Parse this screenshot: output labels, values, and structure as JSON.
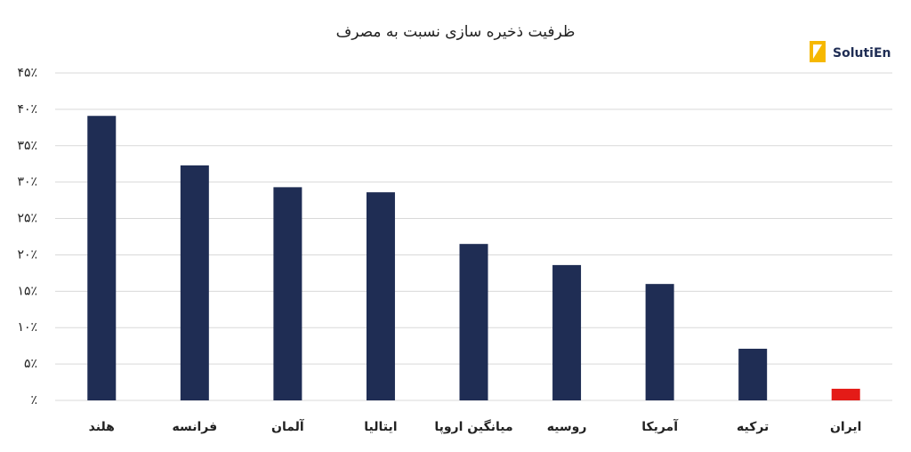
{
  "chart_data": {
    "type": "bar",
    "title": "ظرفیت ذخیره سازی نسبت به مصرف",
    "logo": "SolutiEn",
    "categories": [
      "هلند",
      "فرانسه",
      "آلمان",
      "ایتالیا",
      "میانگین اروپا",
      "روسیه",
      "آمریکا",
      "ترکیه",
      "ایران"
    ],
    "values": [
      39.1,
      32.3,
      29.3,
      28.6,
      21.5,
      18.6,
      16.0,
      7.1,
      1.6
    ],
    "colors": [
      "#1f2d54",
      "#1f2d54",
      "#1f2d54",
      "#1f2d54",
      "#1f2d54",
      "#1f2d54",
      "#1f2d54",
      "#1f2d54",
      "#e41b17"
    ],
    "ylim": [
      0,
      45
    ],
    "yticks": [
      {
        "value": 0,
        "label": "٪"
      },
      {
        "value": 5,
        "label": "۵٪"
      },
      {
        "value": 10,
        "label": "۱۰٪"
      },
      {
        "value": 15,
        "label": "۱۵٪"
      },
      {
        "value": 20,
        "label": "۲۰٪"
      },
      {
        "value": 25,
        "label": "۲۵٪"
      },
      {
        "value": 30,
        "label": "۳۰٪"
      },
      {
        "value": 35,
        "label": "۳۵٪"
      },
      {
        "value": 40,
        "label": "۴۰٪"
      },
      {
        "value": 45,
        "label": "۴۵٪"
      }
    ],
    "grid": true
  }
}
